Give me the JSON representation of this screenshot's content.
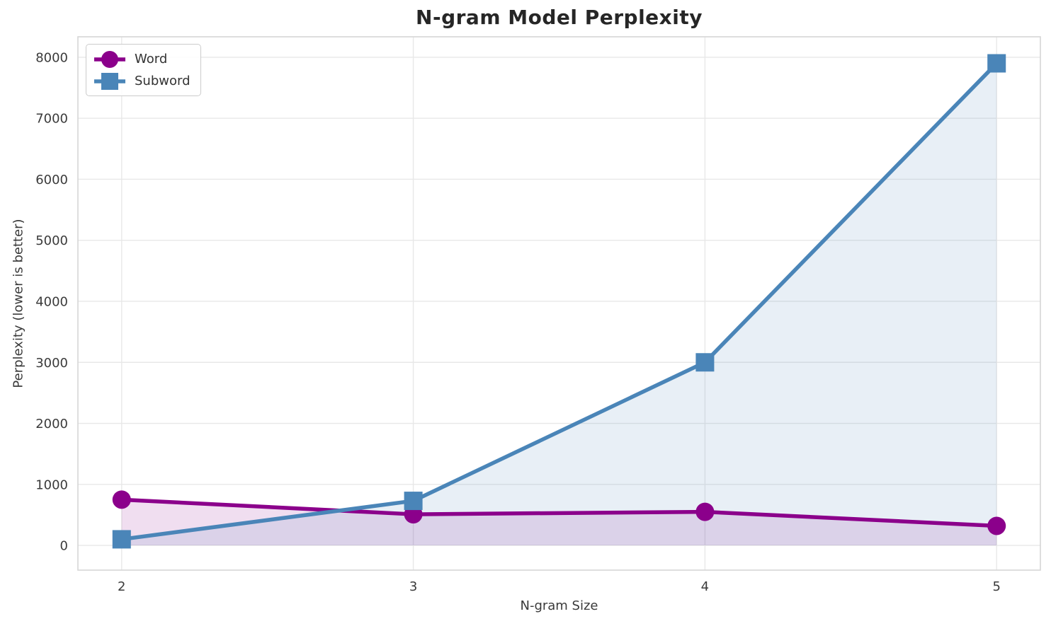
{
  "page": {
    "background": "#ffffff"
  },
  "chart_data": {
    "type": "line",
    "title": "N-gram Model Perplexity",
    "xlabel": "N-gram Size",
    "ylabel": "Perplexity (lower is better)",
    "x": [
      2,
      3,
      4,
      5
    ],
    "xtick_labels": [
      "2",
      "3",
      "4",
      "5"
    ],
    "yticks": [
      0,
      1000,
      2000,
      3000,
      4000,
      5000,
      6000,
      7000,
      8000
    ],
    "xlim": [
      1.85,
      5.15
    ],
    "ylim": [
      -405,
      8335
    ],
    "grid": true,
    "legend_position": "upper-left",
    "series": [
      {
        "name": "Word",
        "marker": "circle",
        "color": "#8B008B",
        "fill_alpha": 0.13,
        "values": [
          750,
          510,
          550,
          320
        ]
      },
      {
        "name": "Subword",
        "marker": "square",
        "color": "#4A85B8",
        "fill_alpha": 0.13,
        "values": [
          100,
          730,
          3000,
          7900
        ]
      }
    ],
    "colors": {
      "grid": "#e8e8e8",
      "spine": "#d6d6d6",
      "tick_text": "#3a3a3a",
      "title_text": "#262626"
    }
  }
}
